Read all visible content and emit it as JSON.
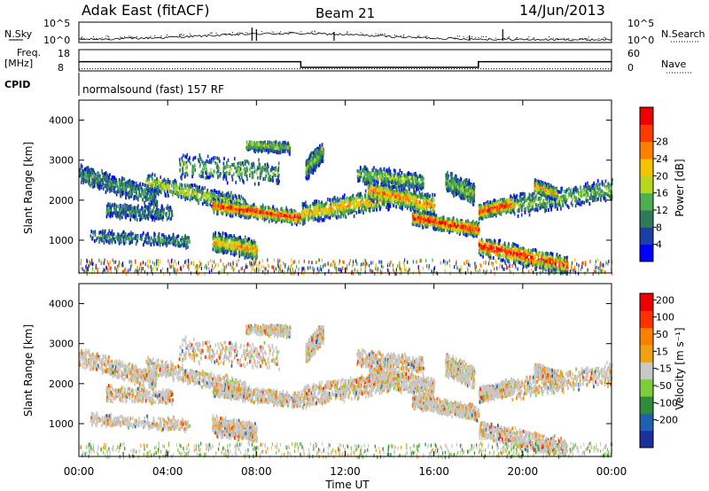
{
  "header": {
    "station": "Adak East (fitACF)",
    "beam": "Beam 21",
    "date": "14/Jun/2013"
  },
  "left_labels": {
    "nsky": "N.Sky",
    "freq": "Freq.",
    "freq_unit": "[MHz]",
    "cpid": "CPID"
  },
  "right_labels": {
    "nsearch": "N.Search",
    "nave": "Nave"
  },
  "cpid_text": "normalsound (fast) 157 RF",
  "chart_data": [
    {
      "type": "line",
      "name_panel": "noise",
      "yticks_left": [
        "10^5",
        "10^0"
      ],
      "yticks_right": [
        "10^5",
        "10^0"
      ]
    },
    {
      "type": "line",
      "name_panel": "frequency-nave",
      "yticks_left": [
        "18",
        "8"
      ],
      "yticks_right": [
        "60",
        "0"
      ],
      "freq_segments": [
        {
          "x0": 0,
          "x1": 10,
          "y": 14.5
        },
        {
          "x0": 10,
          "x1": 18,
          "y": 10.5
        },
        {
          "x0": 18,
          "x1": 24,
          "y": 14.5
        }
      ],
      "nave_level": 11
    },
    {
      "type": "heatmap",
      "name_panel": "power",
      "ylabel": "Slant Range [km]",
      "yticks": [
        "1000",
        "2000",
        "3000",
        "4000"
      ],
      "ylim": [
        180,
        4500
      ],
      "colorbar_label": "Power [dB]",
      "colorbar_ticks": [
        "4",
        "8",
        "12",
        "16",
        "20",
        "24",
        "28"
      ],
      "colors": [
        "#0000ff",
        "#1a3fa8",
        "#2f7a5a",
        "#4caf50",
        "#b8d820",
        "#f2c300",
        "#ff7f00",
        "#ff3a00",
        "#ee0000"
      ]
    },
    {
      "type": "heatmap",
      "name_panel": "velocity",
      "ylabel": "Slant Range [km]",
      "yticks": [
        "1000",
        "2000",
        "3000",
        "4000"
      ],
      "ylim": [
        180,
        4500
      ],
      "colorbar_label": "Velocity [m s⁻¹]",
      "colorbar_ticks": [
        "200",
        "100",
        "50",
        "15",
        "-15",
        "-50",
        "-100",
        "-200"
      ],
      "colors": [
        "#1a2fa0",
        "#2060b0",
        "#2e8c3c",
        "#7ccf3a",
        "#c8c8c8",
        "#f0a010",
        "#ff7f00",
        "#ff3000",
        "#ee0000"
      ],
      "xlabel": "Time UT",
      "xticks": [
        "00:00",
        "04:00",
        "08:00",
        "12:00",
        "16:00",
        "20:00",
        "00:00"
      ],
      "xlim": [
        0,
        24
      ]
    }
  ]
}
